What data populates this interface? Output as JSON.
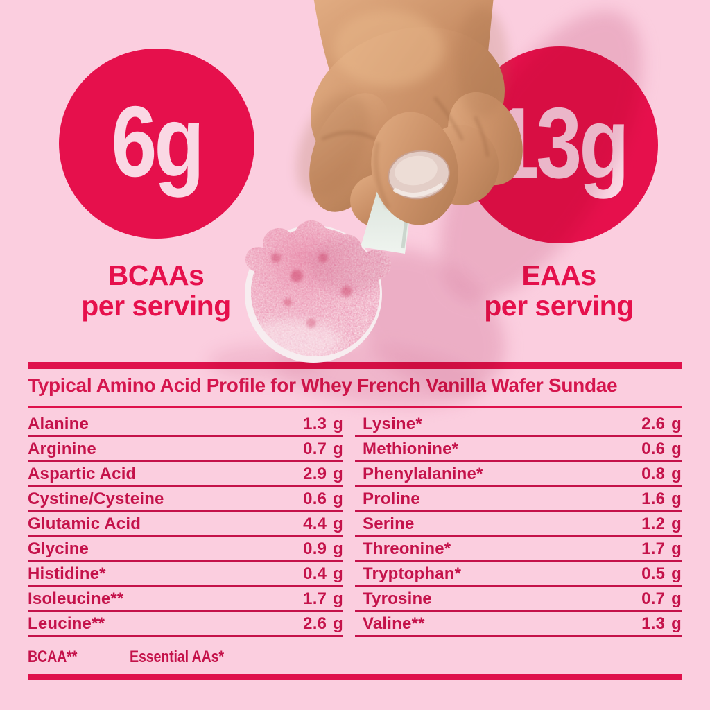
{
  "colors": {
    "background": "#FBCEDF",
    "accent_red": "#E6104C",
    "bar_red": "#DF114C",
    "title_red": "#D5164E",
    "row_red": "#C4124A",
    "circle_text_pink": "#FAD8E4"
  },
  "stats": {
    "left": {
      "value": "6g",
      "label1": "BCAAs",
      "label2": "per serving"
    },
    "right": {
      "value": "13g",
      "label1": "EAAs",
      "label2": "per serving"
    }
  },
  "table": {
    "title": "Typical Amino Acid Profile for Whey French Vanilla Wafer Sundae",
    "columns": [
      {
        "rows": [
          {
            "name": "Alanine",
            "grams": "1.3",
            "unit": "g"
          },
          {
            "name": "Arginine",
            "grams": "0.7",
            "unit": "g"
          },
          {
            "name": "Aspartic Acid",
            "grams": "2.9",
            "unit": "g"
          },
          {
            "name": "Cystine/Cysteine",
            "grams": "0.6",
            "unit": "g"
          },
          {
            "name": "Glutamic Acid",
            "grams": "4.4",
            "unit": "g"
          },
          {
            "name": "Glycine",
            "grams": "0.9",
            "unit": "g"
          },
          {
            "name": "Histidine*",
            "grams": "0.4",
            "unit": "g"
          },
          {
            "name": "Isoleucine**",
            "grams": "1.7",
            "unit": "g"
          },
          {
            "name": "Leucine**",
            "grams": "2.6",
            "unit": "g"
          }
        ]
      },
      {
        "rows": [
          {
            "name": "Lysine*",
            "grams": "2.6",
            "unit": "g"
          },
          {
            "name": "Methionine*",
            "grams": "0.6",
            "unit": "g"
          },
          {
            "name": "Phenylalanine*",
            "grams": "0.8",
            "unit": "g"
          },
          {
            "name": "Proline",
            "grams": "1.6",
            "unit": "g"
          },
          {
            "name": "Serine",
            "grams": "1.2",
            "unit": "g"
          },
          {
            "name": "Threonine*",
            "grams": "1.7",
            "unit": "g"
          },
          {
            "name": "Tryptophan*",
            "grams": "0.5",
            "unit": "g"
          },
          {
            "name": "Tyrosine",
            "grams": "0.7",
            "unit": "g"
          },
          {
            "name": "Valine**",
            "grams": "1.3",
            "unit": "g"
          }
        ]
      }
    ],
    "footnotes": [
      "BCAA**",
      "Essential AAs*"
    ]
  }
}
